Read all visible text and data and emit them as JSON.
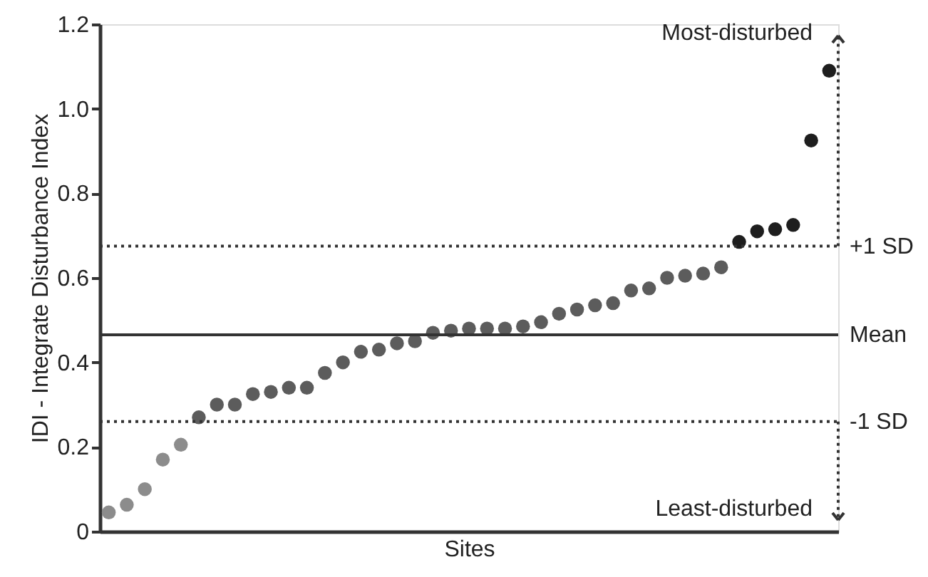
{
  "chart_data": {
    "type": "scatter",
    "xlabel": "Sites",
    "ylabel": "IDI - Integrate Disturbance Index",
    "categories": [
      null,
      null,
      null,
      null,
      null,
      null,
      null,
      null,
      null,
      null,
      null,
      null,
      null,
      null,
      null,
      null,
      null,
      null,
      null,
      null,
      null,
      null,
      null,
      null,
      null,
      null,
      null,
      null,
      null,
      null,
      null,
      null,
      null,
      null,
      null,
      null,
      null,
      null,
      null,
      null,
      null
    ],
    "series": [
      {
        "color": "#8c8c8c",
        "values": [
          0.045,
          0.063,
          0.1,
          0.17,
          0.205,
          null,
          null,
          null,
          null,
          null,
          null,
          null,
          null,
          null,
          null,
          null,
          null,
          null,
          null,
          null,
          null,
          null,
          null,
          null,
          null,
          null,
          null,
          null,
          null,
          null,
          null,
          null,
          null,
          null,
          null,
          null,
          null,
          null,
          null,
          null,
          null
        ]
      },
      {
        "color": "#5c5c5c",
        "values": [
          null,
          null,
          null,
          null,
          null,
          0.27,
          0.3,
          0.3,
          0.325,
          0.33,
          0.34,
          0.34,
          0.375,
          0.4,
          0.425,
          0.43,
          0.445,
          0.45,
          0.47,
          0.475,
          0.48,
          0.48,
          0.48,
          0.485,
          0.495,
          0.515,
          0.525,
          0.535,
          0.54,
          0.57,
          0.575,
          0.6,
          0.605,
          0.61,
          0.625,
          null,
          null,
          null,
          null,
          null,
          null
        ]
      },
      {
        "color": "#1e1e1e",
        "values": [
          null,
          null,
          null,
          null,
          null,
          null,
          null,
          null,
          null,
          null,
          null,
          null,
          null,
          null,
          null,
          null,
          null,
          null,
          null,
          null,
          null,
          null,
          null,
          null,
          null,
          null,
          null,
          null,
          null,
          null,
          null,
          null,
          null,
          null,
          null,
          0.685,
          0.71,
          0.715,
          0.725,
          0.925,
          1.09
        ]
      }
    ],
    "ylim": [
      0,
      1.2
    ],
    "yticks": [
      0,
      0.2,
      0.4,
      0.6,
      0.8,
      {
        "value": 1.0,
        "label": "1.0"
      },
      1.2
    ],
    "tick_labels": "y",
    "ref_lines": [
      {
        "axis": "y",
        "value": 0.675,
        "label": "+1 SD",
        "color": "#333333",
        "line_style": "dotted"
      },
      {
        "axis": "y",
        "value": 0.465,
        "label": "Mean",
        "color": "#333333",
        "line_style": "solid"
      },
      {
        "axis": "y",
        "value": 0.26,
        "label": "-1 SD",
        "color": "#333333",
        "line_style": "dotted"
      }
    ],
    "annotations": [
      "Most-disturbed",
      "Least-disturbed"
    ],
    "marker": "circle",
    "grid": false
  }
}
